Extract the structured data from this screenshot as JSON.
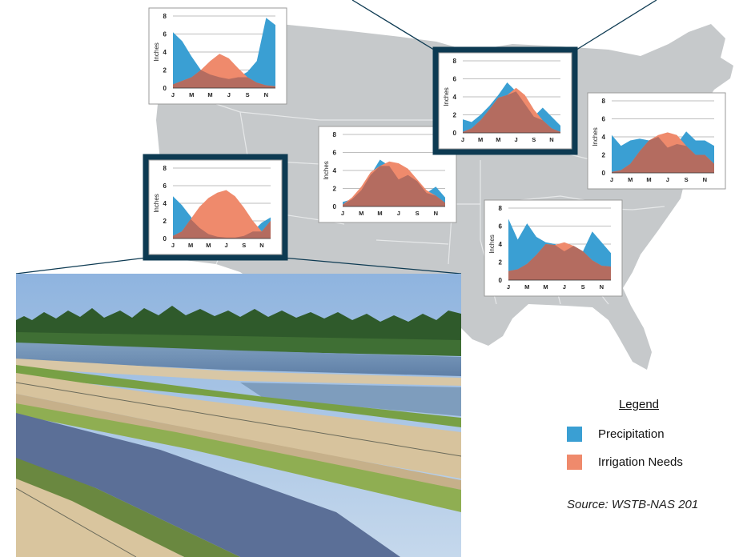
{
  "legend": {
    "title": "Legend",
    "items": [
      {
        "label": "Precipitation",
        "color": "#3a9fd3"
      },
      {
        "label": "Irrigation Needs",
        "color": "#ef8a6c"
      }
    ]
  },
  "source": "Source: WSTB-NAS 201",
  "photo": {
    "subject": "irrigation canals and ponds",
    "icon": "photo-irrigation-canals"
  },
  "colors": {
    "map": "#c6c9cb",
    "highlight_frame": "#0d3a52",
    "overlap": "#b46c60"
  },
  "chart_data": [
    {
      "type": "area",
      "region": "west",
      "highlighted": false,
      "x": [
        "J",
        "F",
        "M",
        "A",
        "M",
        "J",
        "J",
        "A",
        "S",
        "O",
        "N",
        "D"
      ],
      "xticks": [
        "J",
        "M",
        "M",
        "J",
        "S",
        "N"
      ],
      "ylabel": "Inches",
      "ylim": [
        0,
        8
      ],
      "yticks": [
        0,
        2,
        4,
        6,
        8
      ],
      "series": [
        {
          "name": "Precipitation",
          "values": [
            6.2,
            5.2,
            3.5,
            2.0,
            1.5,
            1.2,
            1.0,
            1.2,
            1.8,
            3.0,
            7.8,
            7.0
          ]
        },
        {
          "name": "Irrigation Needs",
          "values": [
            0.4,
            0.8,
            1.2,
            2.0,
            3.0,
            3.8,
            3.3,
            2.2,
            1.2,
            0.6,
            0.3,
            0.2
          ]
        }
      ]
    },
    {
      "type": "area",
      "region": "california",
      "highlighted": true,
      "x": [
        "J",
        "F",
        "M",
        "A",
        "M",
        "J",
        "J",
        "A",
        "S",
        "O",
        "N",
        "D"
      ],
      "xticks": [
        "J",
        "M",
        "M",
        "J",
        "S",
        "N"
      ],
      "ylabel": "Inches",
      "ylim": [
        0,
        8
      ],
      "yticks": [
        0,
        2,
        4,
        6,
        8
      ],
      "series": [
        {
          "name": "Precipitation",
          "values": [
            4.8,
            3.8,
            2.5,
            1.2,
            0.5,
            0.2,
            0.1,
            0.1,
            0.3,
            0.8,
            1.8,
            2.4
          ]
        },
        {
          "name": "Irrigation Needs",
          "values": [
            0.3,
            0.8,
            2.2,
            3.6,
            4.6,
            5.2,
            5.5,
            4.8,
            3.5,
            2.0,
            0.8,
            2.0
          ]
        }
      ]
    },
    {
      "type": "area",
      "region": "plains",
      "highlighted": false,
      "x": [
        "J",
        "F",
        "M",
        "A",
        "M",
        "J",
        "J",
        "A",
        "S",
        "O",
        "N",
        "D"
      ],
      "xticks": [
        "J",
        "M",
        "M",
        "J",
        "S",
        "N"
      ],
      "ylabel": "Inches",
      "ylim": [
        0,
        8
      ],
      "yticks": [
        0,
        2,
        4,
        6,
        8
      ],
      "series": [
        {
          "name": "Precipitation",
          "values": [
            0.5,
            0.8,
            1.8,
            3.5,
            5.2,
            4.5,
            3.0,
            3.5,
            2.8,
            1.5,
            2.2,
            1.0
          ]
        },
        {
          "name": "Irrigation Needs",
          "values": [
            0.2,
            1.0,
            2.2,
            3.8,
            4.5,
            5.0,
            4.8,
            4.2,
            3.0,
            1.8,
            1.2,
            0.4
          ]
        }
      ]
    },
    {
      "type": "area",
      "region": "midwest",
      "highlighted": true,
      "x": [
        "J",
        "F",
        "M",
        "A",
        "M",
        "J",
        "J",
        "A",
        "S",
        "O",
        "N",
        "D"
      ],
      "xticks": [
        "J",
        "M",
        "M",
        "J",
        "S",
        "N"
      ],
      "ylabel": "Inches",
      "ylim": [
        0,
        8
      ],
      "yticks": [
        0,
        2,
        4,
        6,
        8
      ],
      "series": [
        {
          "name": "Precipitation",
          "values": [
            1.5,
            1.2,
            2.0,
            3.0,
            4.2,
            5.6,
            4.6,
            3.2,
            1.8,
            2.8,
            1.8,
            0.8
          ]
        },
        {
          "name": "Irrigation Needs",
          "values": [
            0.1,
            0.5,
            1.4,
            2.6,
            3.9,
            4.2,
            5.0,
            4.2,
            2.6,
            1.4,
            0.5,
            0.1
          ]
        }
      ]
    },
    {
      "type": "area",
      "region": "south",
      "highlighted": false,
      "x": [
        "J",
        "F",
        "M",
        "A",
        "M",
        "J",
        "J",
        "A",
        "S",
        "O",
        "N",
        "D"
      ],
      "xticks": [
        "J",
        "M",
        "M",
        "J",
        "S",
        "N"
      ],
      "ylabel": "Inches",
      "ylim": [
        0,
        8
      ],
      "yticks": [
        0,
        2,
        4,
        6,
        8
      ],
      "series": [
        {
          "name": "Precipitation",
          "values": [
            6.8,
            4.5,
            6.3,
            4.8,
            4.2,
            4.0,
            3.2,
            3.8,
            3.2,
            5.4,
            4.2,
            3.0
          ]
        },
        {
          "name": "Irrigation Needs",
          "values": [
            1.0,
            1.2,
            1.8,
            2.8,
            4.0,
            3.9,
            4.2,
            3.8,
            3.2,
            2.2,
            1.6,
            1.5
          ]
        }
      ]
    },
    {
      "type": "area",
      "region": "east",
      "highlighted": false,
      "x": [
        "J",
        "F",
        "M",
        "A",
        "M",
        "J",
        "J",
        "A",
        "S",
        "O",
        "N",
        "D"
      ],
      "xticks": [
        "J",
        "M",
        "M",
        "J",
        "S",
        "N"
      ],
      "ylabel": "Inches",
      "ylim": [
        0,
        8
      ],
      "yticks": [
        0,
        2,
        4,
        6,
        8
      ],
      "series": [
        {
          "name": "Precipitation",
          "values": [
            4.2,
            3.0,
            3.6,
            3.8,
            3.6,
            4.0,
            2.8,
            3.2,
            4.6,
            3.6,
            3.6,
            3.0
          ]
        },
        {
          "name": "Irrigation Needs",
          "values": [
            0.1,
            0.3,
            1.0,
            2.4,
            3.6,
            4.2,
            4.5,
            4.2,
            3.0,
            2.0,
            2.0,
            1.0
          ]
        }
      ]
    }
  ]
}
